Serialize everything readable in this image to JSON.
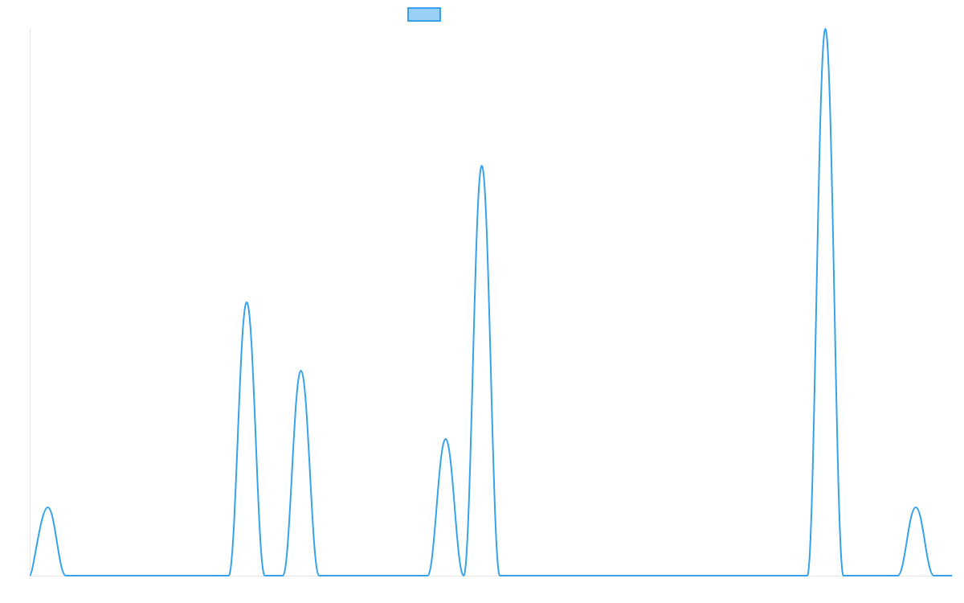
{
  "chart_data": {
    "type": "line",
    "title": "",
    "xlabel": "",
    "ylabel": "",
    "ylim": [
      0,
      8
    ],
    "grid": false,
    "legend": {
      "placement": "top-center",
      "swatch_fill": "#9ad0f5",
      "swatch_stroke": "#36a2eb"
    },
    "colors": {
      "line": "#36a2eb",
      "axis": "#e6e6e6"
    },
    "x": [
      0,
      1,
      2,
      3,
      4,
      5,
      6,
      7,
      8,
      9,
      10,
      11,
      12,
      13,
      14,
      15,
      16,
      17,
      18,
      19,
      20,
      21,
      22,
      23,
      24,
      25,
      26,
      27,
      28,
      29,
      30,
      31,
      32,
      33,
      34,
      35,
      36,
      37,
      38,
      39,
      40,
      41,
      42,
      43,
      44,
      45,
      46,
      47,
      48,
      49,
      50,
      51
    ],
    "series": [
      {
        "values": [
          0,
          1,
          0,
          0,
          0,
          0,
          0,
          0,
          0,
          0,
          0,
          0,
          4,
          0,
          0,
          3,
          0,
          0,
          0,
          0,
          0,
          0,
          0,
          2,
          0,
          6,
          0,
          0,
          0,
          0,
          0,
          0,
          0,
          0,
          0,
          0,
          0,
          0,
          0,
          0,
          0,
          0,
          0,
          0,
          8,
          0,
          0,
          0,
          0,
          1,
          0,
          0
        ]
      }
    ]
  }
}
